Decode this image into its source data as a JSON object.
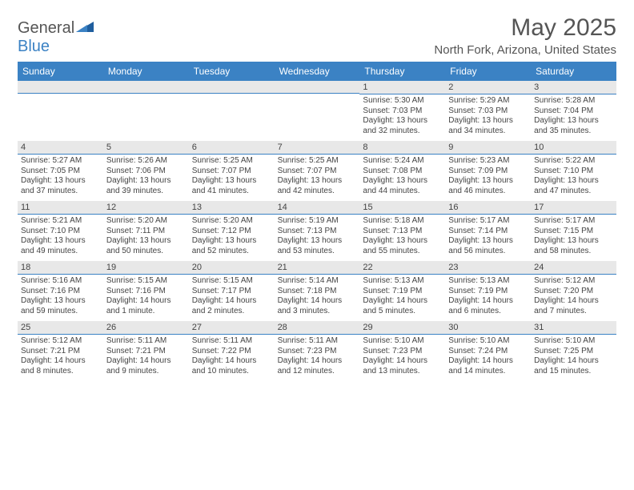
{
  "brand": {
    "part1": "General",
    "part2": "Blue"
  },
  "title": "May 2025",
  "location": "North Fork, Arizona, United States",
  "colors": {
    "accent": "#3b82c4",
    "dayBarBg": "#e8e8e8",
    "text": "#444444"
  },
  "dow": [
    "Sunday",
    "Monday",
    "Tuesday",
    "Wednesday",
    "Thursday",
    "Friday",
    "Saturday"
  ],
  "weeks": [
    [
      {
        "n": "",
        "r": "",
        "s": "",
        "d": ""
      },
      {
        "n": "",
        "r": "",
        "s": "",
        "d": ""
      },
      {
        "n": "",
        "r": "",
        "s": "",
        "d": ""
      },
      {
        "n": "",
        "r": "",
        "s": "",
        "d": ""
      },
      {
        "n": "1",
        "r": "Sunrise: 5:30 AM",
        "s": "Sunset: 7:03 PM",
        "d": "Daylight: 13 hours and 32 minutes."
      },
      {
        "n": "2",
        "r": "Sunrise: 5:29 AM",
        "s": "Sunset: 7:03 PM",
        "d": "Daylight: 13 hours and 34 minutes."
      },
      {
        "n": "3",
        "r": "Sunrise: 5:28 AM",
        "s": "Sunset: 7:04 PM",
        "d": "Daylight: 13 hours and 35 minutes."
      }
    ],
    [
      {
        "n": "4",
        "r": "Sunrise: 5:27 AM",
        "s": "Sunset: 7:05 PM",
        "d": "Daylight: 13 hours and 37 minutes."
      },
      {
        "n": "5",
        "r": "Sunrise: 5:26 AM",
        "s": "Sunset: 7:06 PM",
        "d": "Daylight: 13 hours and 39 minutes."
      },
      {
        "n": "6",
        "r": "Sunrise: 5:25 AM",
        "s": "Sunset: 7:07 PM",
        "d": "Daylight: 13 hours and 41 minutes."
      },
      {
        "n": "7",
        "r": "Sunrise: 5:25 AM",
        "s": "Sunset: 7:07 PM",
        "d": "Daylight: 13 hours and 42 minutes."
      },
      {
        "n": "8",
        "r": "Sunrise: 5:24 AM",
        "s": "Sunset: 7:08 PM",
        "d": "Daylight: 13 hours and 44 minutes."
      },
      {
        "n": "9",
        "r": "Sunrise: 5:23 AM",
        "s": "Sunset: 7:09 PM",
        "d": "Daylight: 13 hours and 46 minutes."
      },
      {
        "n": "10",
        "r": "Sunrise: 5:22 AM",
        "s": "Sunset: 7:10 PM",
        "d": "Daylight: 13 hours and 47 minutes."
      }
    ],
    [
      {
        "n": "11",
        "r": "Sunrise: 5:21 AM",
        "s": "Sunset: 7:10 PM",
        "d": "Daylight: 13 hours and 49 minutes."
      },
      {
        "n": "12",
        "r": "Sunrise: 5:20 AM",
        "s": "Sunset: 7:11 PM",
        "d": "Daylight: 13 hours and 50 minutes."
      },
      {
        "n": "13",
        "r": "Sunrise: 5:20 AM",
        "s": "Sunset: 7:12 PM",
        "d": "Daylight: 13 hours and 52 minutes."
      },
      {
        "n": "14",
        "r": "Sunrise: 5:19 AM",
        "s": "Sunset: 7:13 PM",
        "d": "Daylight: 13 hours and 53 minutes."
      },
      {
        "n": "15",
        "r": "Sunrise: 5:18 AM",
        "s": "Sunset: 7:13 PM",
        "d": "Daylight: 13 hours and 55 minutes."
      },
      {
        "n": "16",
        "r": "Sunrise: 5:17 AM",
        "s": "Sunset: 7:14 PM",
        "d": "Daylight: 13 hours and 56 minutes."
      },
      {
        "n": "17",
        "r": "Sunrise: 5:17 AM",
        "s": "Sunset: 7:15 PM",
        "d": "Daylight: 13 hours and 58 minutes."
      }
    ],
    [
      {
        "n": "18",
        "r": "Sunrise: 5:16 AM",
        "s": "Sunset: 7:16 PM",
        "d": "Daylight: 13 hours and 59 minutes."
      },
      {
        "n": "19",
        "r": "Sunrise: 5:15 AM",
        "s": "Sunset: 7:16 PM",
        "d": "Daylight: 14 hours and 1 minute."
      },
      {
        "n": "20",
        "r": "Sunrise: 5:15 AM",
        "s": "Sunset: 7:17 PM",
        "d": "Daylight: 14 hours and 2 minutes."
      },
      {
        "n": "21",
        "r": "Sunrise: 5:14 AM",
        "s": "Sunset: 7:18 PM",
        "d": "Daylight: 14 hours and 3 minutes."
      },
      {
        "n": "22",
        "r": "Sunrise: 5:13 AM",
        "s": "Sunset: 7:19 PM",
        "d": "Daylight: 14 hours and 5 minutes."
      },
      {
        "n": "23",
        "r": "Sunrise: 5:13 AM",
        "s": "Sunset: 7:19 PM",
        "d": "Daylight: 14 hours and 6 minutes."
      },
      {
        "n": "24",
        "r": "Sunrise: 5:12 AM",
        "s": "Sunset: 7:20 PM",
        "d": "Daylight: 14 hours and 7 minutes."
      }
    ],
    [
      {
        "n": "25",
        "r": "Sunrise: 5:12 AM",
        "s": "Sunset: 7:21 PM",
        "d": "Daylight: 14 hours and 8 minutes."
      },
      {
        "n": "26",
        "r": "Sunrise: 5:11 AM",
        "s": "Sunset: 7:21 PM",
        "d": "Daylight: 14 hours and 9 minutes."
      },
      {
        "n": "27",
        "r": "Sunrise: 5:11 AM",
        "s": "Sunset: 7:22 PM",
        "d": "Daylight: 14 hours and 10 minutes."
      },
      {
        "n": "28",
        "r": "Sunrise: 5:11 AM",
        "s": "Sunset: 7:23 PM",
        "d": "Daylight: 14 hours and 12 minutes."
      },
      {
        "n": "29",
        "r": "Sunrise: 5:10 AM",
        "s": "Sunset: 7:23 PM",
        "d": "Daylight: 14 hours and 13 minutes."
      },
      {
        "n": "30",
        "r": "Sunrise: 5:10 AM",
        "s": "Sunset: 7:24 PM",
        "d": "Daylight: 14 hours and 14 minutes."
      },
      {
        "n": "31",
        "r": "Sunrise: 5:10 AM",
        "s": "Sunset: 7:25 PM",
        "d": "Daylight: 14 hours and 15 minutes."
      }
    ]
  ]
}
